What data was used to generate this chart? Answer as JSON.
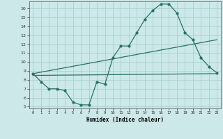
{
  "xlabel": "Humidex (Indice chaleur)",
  "background_color": "#cce8e8",
  "grid_color": "#aacfcf",
  "line_color": "#2a7068",
  "xlim": [
    -0.5,
    23.5
  ],
  "ylim": [
    4.8,
    16.8
  ],
  "yticks": [
    5,
    6,
    7,
    8,
    9,
    10,
    11,
    12,
    13,
    14,
    15,
    16
  ],
  "xticks": [
    0,
    1,
    2,
    3,
    4,
    5,
    6,
    7,
    8,
    9,
    10,
    11,
    12,
    13,
    14,
    15,
    16,
    17,
    18,
    19,
    20,
    21,
    22,
    23
  ],
  "curve1_x": [
    0,
    1,
    2,
    3,
    4,
    5,
    6,
    7,
    8,
    9,
    10,
    11,
    12,
    13,
    14,
    15,
    16,
    17,
    18,
    19,
    20,
    21,
    22,
    23
  ],
  "curve1_y": [
    8.7,
    7.8,
    7.0,
    7.0,
    6.8,
    5.5,
    5.2,
    5.2,
    7.8,
    7.5,
    10.5,
    11.8,
    11.8,
    13.3,
    14.8,
    15.8,
    16.5,
    16.5,
    15.5,
    13.3,
    12.5,
    10.5,
    9.5,
    8.8
  ],
  "curve2_x": [
    0,
    23
  ],
  "curve2_y": [
    8.5,
    8.7
  ],
  "curve3_x": [
    0,
    23
  ],
  "curve3_y": [
    8.7,
    12.5
  ],
  "marker_size": 2.0,
  "linewidth": 0.9
}
